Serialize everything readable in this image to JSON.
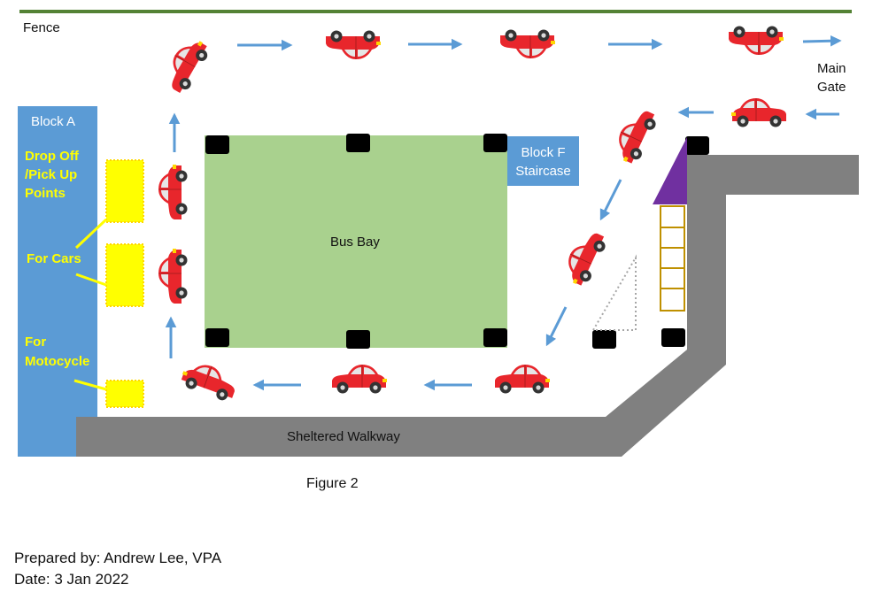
{
  "labels": {
    "fence": "Fence",
    "main_gate_line1": "Main",
    "main_gate_line2": "Gate",
    "block_a": "Block A",
    "drop_off_line1": "Drop Off",
    "drop_off_line2": "/Pick Up",
    "drop_off_line3": "Points",
    "for_cars": "For Cars",
    "for_moto_line1": "For",
    "for_moto_line2": "Motocycle",
    "block_f_line1": "Block F",
    "block_f_line2": "Staircase",
    "bus_bay": "Bus Bay",
    "sheltered_walkway": "Sheltered Walkway",
    "figure": "Figure 2",
    "prepared_by": "Prepared by: Andrew Lee, VPA",
    "date": "Date:  3 Jan 2022"
  },
  "colors": {
    "fence": "#548235",
    "block": "#5b9bd5",
    "bus_bay": "#a9d18e",
    "yellow": "#ffff00",
    "walkway": "#808080",
    "arrow": "#5b9bd5",
    "car": "#e8262c",
    "purple": "#7030a0",
    "ladder": "#bf9000"
  }
}
